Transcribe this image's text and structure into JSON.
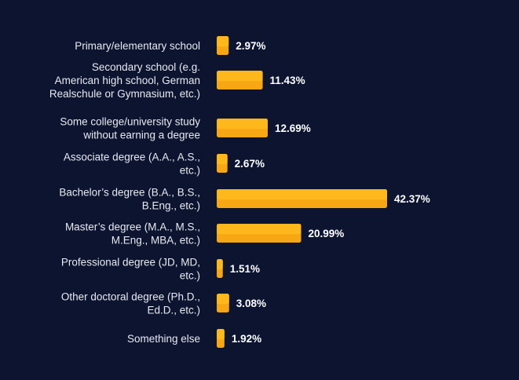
{
  "chart_data": {
    "type": "bar",
    "orientation": "horizontal",
    "categories": [
      [
        "Primary/elementary school"
      ],
      [
        "Secondary school (e.g.",
        "American high school, German",
        "Realschule or Gymnasium, etc.)"
      ],
      [
        "Some college/university study",
        "without earning a degree"
      ],
      [
        "Associate degree (A.A., A.S.,",
        "etc.)"
      ],
      [
        "Bachelor’s degree (B.A., B.S.,",
        "B.Eng., etc.)"
      ],
      [
        "Master’s degree (M.A., M.S.,",
        "M.Eng., MBA, etc.)"
      ],
      [
        "Professional degree (JD, MD,",
        "etc.)"
      ],
      [
        "Other doctoral degree (Ph.D.,",
        "Ed.D., etc.)"
      ],
      [
        "Something else"
      ]
    ],
    "values": [
      2.97,
      11.43,
      12.69,
      2.67,
      42.37,
      20.99,
      1.51,
      3.08,
      1.92
    ],
    "value_labels": [
      "2.97%",
      "11.43%",
      "12.69%",
      "2.67%",
      "42.37%",
      "20.99%",
      "1.51%",
      "3.08%",
      "1.92%"
    ],
    "xlim": [
      0,
      42.37
    ],
    "grid": false,
    "legend": "none",
    "colors": {
      "background": "#0c1430",
      "bar": "#f7a713",
      "bar_highlight": "#ffb81c",
      "label": "#e8eaf0",
      "value_label": "#ffffff"
    }
  }
}
